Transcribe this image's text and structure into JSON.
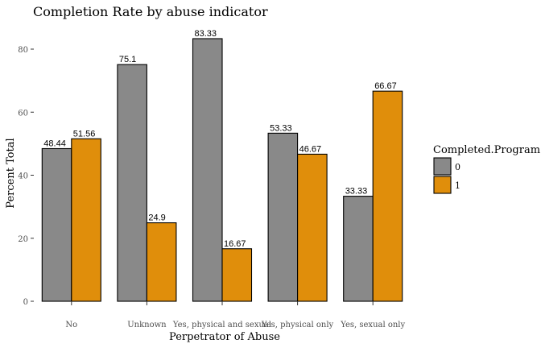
{
  "chart_data": {
    "type": "bar",
    "title": "Completion Rate by abuse indicator",
    "xlabel": "Perpetrator of Abuse",
    "ylabel": "Percent Total",
    "categories": [
      "No",
      "Unknown",
      "Yes, physical and sexual",
      "Yes, physical only",
      "Yes, sexual only"
    ],
    "series": [
      {
        "name": "0",
        "values": [
          48.44,
          75.1,
          83.33,
          53.33,
          33.33
        ],
        "labels": [
          "48.44",
          "75.1",
          "83.33",
          "53.33",
          "33.33"
        ]
      },
      {
        "name": "1",
        "values": [
          51.56,
          24.9,
          16.67,
          46.67,
          66.67
        ],
        "labels": [
          "51.56",
          "24.9",
          "16.67",
          "46.67",
          "66.67"
        ]
      }
    ],
    "ylim": [
      0,
      85
    ],
    "yticks": [
      0,
      20,
      40,
      60,
      80
    ],
    "legend": {
      "title": "Completed.Program",
      "position": "right"
    },
    "grid": false
  },
  "colors": {
    "series_0": "#898989",
    "series_1": "#e08e0b",
    "bar_border": "#000000"
  }
}
